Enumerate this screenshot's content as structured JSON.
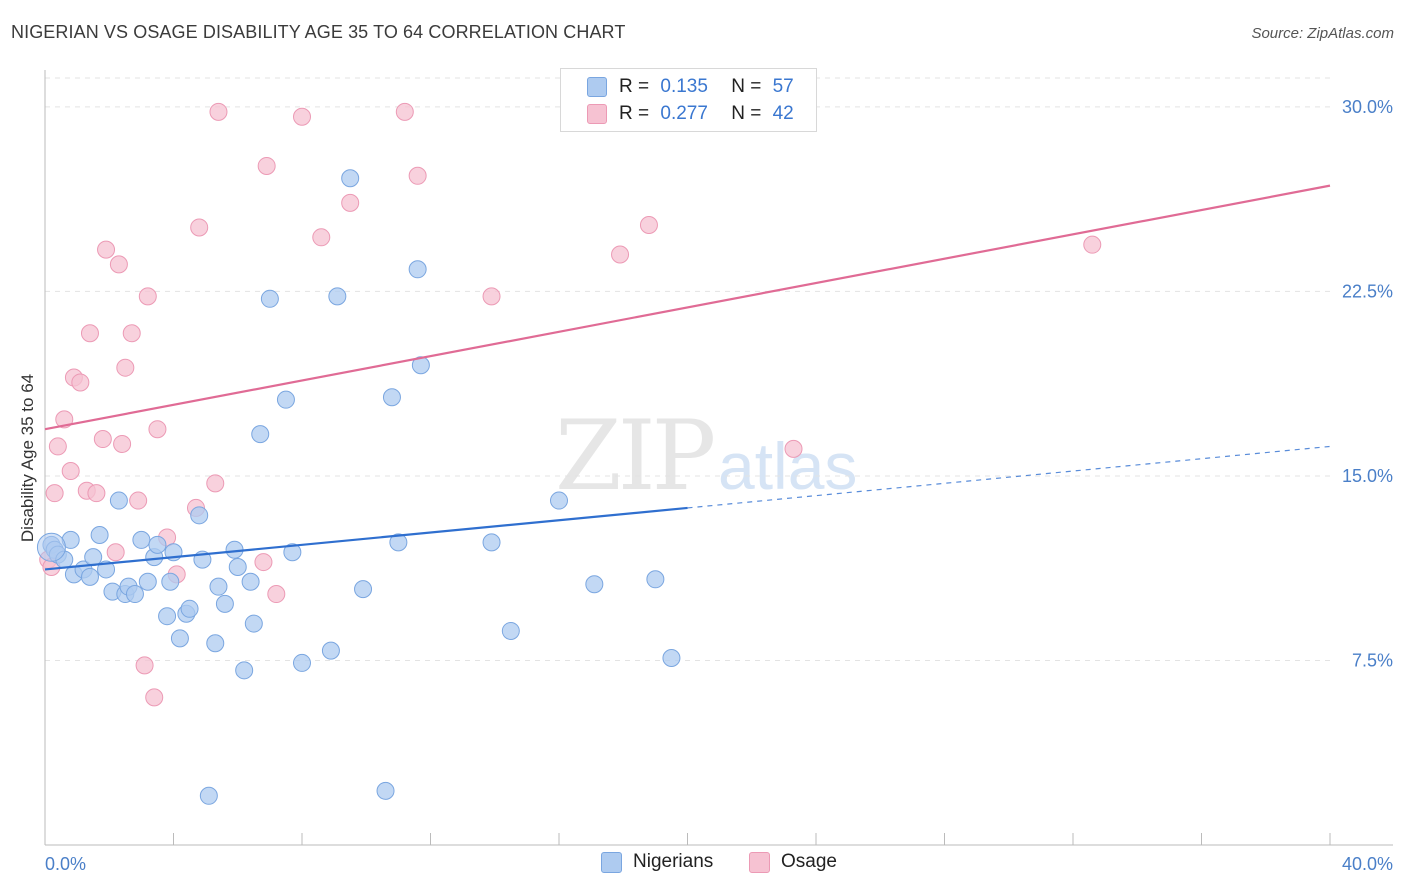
{
  "header": {
    "title": "NIGERIAN VS OSAGE DISABILITY AGE 35 TO 64 CORRELATION CHART",
    "source": "Source: ZipAtlas.com"
  },
  "legend": {
    "r_label": "R =",
    "n_label": "N =",
    "series": [
      {
        "name": "Nigerians",
        "r": "0.135",
        "n": "57"
      },
      {
        "name": "Osage",
        "r": "0.277",
        "n": "42"
      }
    ]
  },
  "watermark": {
    "zip": "ZIP",
    "atlas": "atlas"
  },
  "colors": {
    "blue_fill": "#aecbf0",
    "blue_stroke": "#7aa6e0",
    "blue_line": "#2f6fcf",
    "pink_fill": "#f6c2d2",
    "pink_stroke": "#ec9ab5",
    "pink_line": "#e06b95",
    "tick_label": "#4a7fc8"
  },
  "chart_data": {
    "type": "scatter",
    "title": "NIGERIAN VS OSAGE DISABILITY AGE 35 TO 64 CORRELATION CHART",
    "xlabel": "",
    "ylabel": "Disability Age 35 to 64",
    "xlim": [
      0,
      40
    ],
    "ylim": [
      0,
      31.5
    ],
    "x_tick_labels": [
      "0.0%",
      "40.0%"
    ],
    "y_ticks": [
      7.5,
      15.0,
      22.5,
      30.0
    ],
    "y_tick_labels": [
      "7.5%",
      "15.0%",
      "22.5%",
      "30.0%"
    ],
    "series": [
      {
        "name": "Nigerians",
        "r": 0.135,
        "n": 57,
        "trend": {
          "x0": 0,
          "y0": 11.2,
          "x1": 20,
          "y1": 13.7,
          "dashed_to_x": 40,
          "dashed_to_y": 16.2
        },
        "points": [
          [
            0.2,
            12.2
          ],
          [
            0.3,
            12.0
          ],
          [
            0.4,
            11.8
          ],
          [
            0.6,
            11.6
          ],
          [
            0.8,
            12.4
          ],
          [
            0.9,
            11.0
          ],
          [
            1.2,
            11.2
          ],
          [
            1.4,
            10.9
          ],
          [
            1.5,
            11.7
          ],
          [
            1.7,
            12.6
          ],
          [
            1.9,
            11.2
          ],
          [
            2.1,
            10.3
          ],
          [
            2.3,
            14.0
          ],
          [
            2.5,
            10.2
          ],
          [
            2.6,
            10.5
          ],
          [
            2.8,
            10.2
          ],
          [
            3.0,
            12.4
          ],
          [
            3.2,
            10.7
          ],
          [
            3.4,
            11.7
          ],
          [
            3.5,
            12.2
          ],
          [
            3.8,
            9.3
          ],
          [
            3.9,
            10.7
          ],
          [
            4.0,
            11.9
          ],
          [
            4.2,
            8.4
          ],
          [
            4.4,
            9.4
          ],
          [
            4.5,
            9.6
          ],
          [
            4.8,
            13.4
          ],
          [
            4.9,
            11.6
          ],
          [
            5.1,
            2.0
          ],
          [
            5.3,
            8.2
          ],
          [
            5.4,
            10.5
          ],
          [
            5.6,
            9.8
          ],
          [
            5.9,
            12.0
          ],
          [
            6.0,
            11.3
          ],
          [
            6.2,
            7.1
          ],
          [
            6.4,
            10.7
          ],
          [
            6.5,
            9.0
          ],
          [
            6.7,
            16.7
          ],
          [
            7.0,
            22.2
          ],
          [
            7.5,
            18.1
          ],
          [
            7.7,
            11.9
          ],
          [
            8.0,
            7.4
          ],
          [
            8.9,
            7.9
          ],
          [
            9.1,
            22.3
          ],
          [
            9.5,
            27.1
          ],
          [
            9.9,
            10.4
          ],
          [
            10.6,
            2.2
          ],
          [
            10.8,
            18.2
          ],
          [
            11.0,
            12.3
          ],
          [
            11.6,
            23.4
          ],
          [
            11.7,
            19.5
          ],
          [
            13.9,
            12.3
          ],
          [
            14.5,
            8.7
          ],
          [
            16.0,
            14.0
          ],
          [
            17.1,
            10.6
          ],
          [
            19.0,
            10.8
          ],
          [
            19.5,
            7.6
          ]
        ]
      },
      {
        "name": "Osage",
        "r": 0.277,
        "n": 42,
        "trend": {
          "x0": 0,
          "y0": 16.9,
          "x1": 40,
          "y1": 26.8
        },
        "points": [
          [
            0.1,
            11.6
          ],
          [
            0.2,
            11.3
          ],
          [
            0.3,
            14.3
          ],
          [
            0.4,
            16.2
          ],
          [
            0.6,
            17.3
          ],
          [
            0.8,
            15.2
          ],
          [
            0.9,
            19.0
          ],
          [
            1.1,
            18.8
          ],
          [
            1.3,
            14.4
          ],
          [
            1.4,
            20.8
          ],
          [
            1.6,
            14.3
          ],
          [
            1.8,
            16.5
          ],
          [
            1.9,
            24.2
          ],
          [
            2.2,
            11.9
          ],
          [
            2.3,
            23.6
          ],
          [
            2.4,
            16.3
          ],
          [
            2.5,
            19.4
          ],
          [
            2.7,
            20.8
          ],
          [
            2.9,
            14.0
          ],
          [
            3.1,
            7.3
          ],
          [
            3.2,
            22.3
          ],
          [
            3.4,
            6.0
          ],
          [
            3.5,
            16.9
          ],
          [
            3.8,
            12.5
          ],
          [
            4.1,
            11.0
          ],
          [
            4.7,
            13.7
          ],
          [
            4.8,
            25.1
          ],
          [
            5.3,
            14.7
          ],
          [
            5.4,
            29.8
          ],
          [
            6.8,
            11.5
          ],
          [
            6.9,
            27.6
          ],
          [
            7.2,
            10.2
          ],
          [
            8.0,
            29.6
          ],
          [
            8.6,
            24.7
          ],
          [
            9.5,
            26.1
          ],
          [
            11.2,
            29.8
          ],
          [
            11.6,
            27.2
          ],
          [
            13.9,
            22.3
          ],
          [
            17.9,
            24.0
          ],
          [
            18.8,
            25.2
          ],
          [
            23.3,
            16.1
          ],
          [
            32.6,
            24.4
          ]
        ]
      }
    ]
  }
}
